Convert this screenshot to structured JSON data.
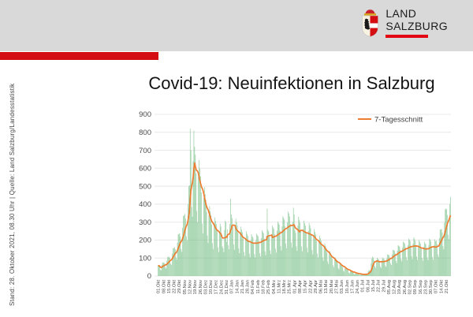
{
  "header": {
    "band_color": "#d9d9d9",
    "accent_color": "#d40d12",
    "logo": {
      "line1": "LAND",
      "line2": "SALZBURG",
      "underline_color": "#e30613"
    }
  },
  "source_stamp": "Stand: 28. Oktober 2021, 08.30 Uhr | Quelle: Land Salzburg/Landesstatistik",
  "title": "Covid-19: Neuinfektionen in Salzburg",
  "chart_data": {
    "type": "bar",
    "title": "Covid-19: Neuinfektionen in Salzburg",
    "ylabel": "",
    "xlabel": "",
    "ylim": [
      0,
      900
    ],
    "y_ticks": [
      0,
      100,
      200,
      300,
      400,
      500,
      600,
      700,
      800,
      900
    ],
    "grid": "horizontal",
    "grid_color": "#e8e8e8",
    "axis_text_color": "#4a4a4a",
    "bar_color": "#72bd82",
    "line_color": "#ED7D31",
    "legend": {
      "label": "7-Tagesschnitt",
      "color": "#ED7D31",
      "position": "top-right",
      "window_days": 7
    },
    "x_tick_interval_days": 7,
    "x_tick_labels": [
      "01.Okt",
      "08.Okt",
      "15.Okt",
      "22.Okt",
      "29.Okt",
      "05.Nov",
      "12.Nov",
      "19.Nov",
      "26.Nov",
      "03.Dez",
      "10.Dez",
      "17.Dez",
      "24.Dez",
      "31.Dez",
      "07.Jan",
      "14.Jan",
      "21.Jan",
      "28.Jan",
      "04.Feb",
      "11.Feb",
      "18.Feb",
      "25.Feb",
      "04.Mrz",
      "11.Mrz",
      "18.Mrz",
      "25.Mrz",
      "01.Apr",
      "08.Apr",
      "15.Apr",
      "22.Apr",
      "29.Apr",
      "06.Mai",
      "13.Mai",
      "20.Mai",
      "27.Mai",
      "03.Jun",
      "10.Jun",
      "17.Jun",
      "24.Jun",
      "01.Jul",
      "08.Jul",
      "15.Jul",
      "22.Jul",
      "29.Jul",
      "05.Aug",
      "12.Aug",
      "19.Aug",
      "26.Aug",
      "02.Sep",
      "09.Sep",
      "16.Sep",
      "23.Sep",
      "30.Sep",
      "07.Okt",
      "14.Okt",
      "21.Okt"
    ],
    "series": [
      {
        "name": "Neuinfektionen (täglich)",
        "type": "bar",
        "values": [
          58,
          57,
          52,
          35,
          31,
          61,
          75,
          74,
          76,
          69,
          47,
          42,
          85,
          105,
          106,
          108,
          100,
          69,
          62,
          124,
          155,
          156,
          160,
          149,
          103,
          92,
          185,
          232,
          234,
          238,
          219,
          150,
          134,
          268,
          335,
          336,
          345,
          320,
          221,
          198,
          399,
          500,
          504,
          820,
          700,
          385,
          330,
          640,
          810,
          720,
          675,
          571,
          362,
          300,
          555,
          645,
          600,
          555,
          466,
          292,
          237,
          435,
          495,
          456,
          424,
          357,
          225,
          184,
          339,
          390,
          360,
          338,
          287,
          183,
          151,
          281,
          326,
          306,
          289,
          248,
          159,
          133,
          249,
          292,
          276,
          210,
          165,
          155,
          133,
          256,
          309,
          300,
          190,
          260,
          172,
          149,
          289,
          430,
          342,
          322,
          275,
          176,
          146,
          273,
          319,
          300,
          282,
          240,
          153,
          127,
          236,
          275,
          258,
          244,
          209,
          134,
          112,
          211,
          248,
          234,
          223,
          192,
          124,
          104,
          197,
          233,
          222,
          214,
          186,
          122,
          103,
          198,
          236,
          228,
          221,
          194,
          127,
          109,
          211,
          254,
          246,
          237,
          208,
          136,
          116,
          223,
          375,
          258,
          248,
          218,
          142,
          122,
          233,
          280,
          270,
          262,
          231,
          152,
          130,
          252,
          303,
          294,
          286,
          252,
          166,
          142,
          276,
          333,
          324,
          314,
          276,
          181,
          155,
          298,
          359,
          348,
          332,
          289,
          187,
          158,
          301,
          380,
          342,
          255,
          240,
          165,
          140,
          280,
          330,
          312,
          297,
          256,
          165,
          138,
          261,
          309,
          294,
          281,
          242,
          157,
          131,
          250,
          295,
          282,
          266,
          226,
          144,
          120,
          225,
          261,
          246,
          231,
          196,
          125,
          103,
          193,
          224,
          210,
          196,
          165,
          104,
          85,
          158,
          181,
          168,
          155,
          130,
          81,
          66,
          121,
          138,
          126,
          116,
          97,
          60,
          50,
          90,
          103,
          94,
          86,
          71,
          44,
          36,
          65,
          73,
          66,
          60,
          49,
          30,
          24,
          43,
          48,
          42,
          38,
          31,
          19,
          15,
          27,
          30,
          26,
          24,
          19,
          12,
          9,
          16,
          18,
          16,
          14,
          12,
          7,
          6,
          10,
          11,
          10,
          10,
          9,
          6,
          6,
          12,
          14,
          14,
          26,
          34,
          29,
          31,
          70,
          98,
          108,
          102,
          87,
          56,
          46,
          87,
          101,
          96,
          92,
          81,
          53,
          45,
          86,
          103,
          98,
          97,
          87,
          58,
          50,
          98,
          120,
          118,
          116,
          104,
          70,
          61,
          120,
          146,
          144,
          141,
          126,
          84,
          72,
          141,
          171,
          168,
          163,
          144,
          95,
          82,
          159,
          191,
          186,
          181,
          159,
          105,
          89,
          172,
          208,
          202,
          194,
          169,
          111,
          94,
          180,
          215,
          206,
          196,
          168,
          108,
          90,
          170,
          200,
          190,
          181,
          156,
          101,
          85,
          162,
          191,
          182,
          177,
          157,
          103,
          89,
          172,
          208,
          202,
          192,
          166,
          107,
          91,
          172,
          204,
          194,
          196,
          177,
          120,
          106,
          210,
          259,
          258,
          263,
          242,
          166,
          148,
          297,
          370,
          375,
          372,
          340,
          230,
          205,
          400,
          440
        ]
      },
      {
        "name": "7-Tagesschnitt",
        "type": "line",
        "derived_from": "7-day trailing mean of daily bars"
      }
    ]
  }
}
